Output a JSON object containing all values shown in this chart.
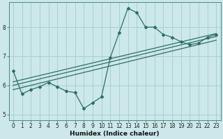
{
  "xlabel": "Humidex (Indice chaleur)",
  "background_color": "#cce8ea",
  "line_color": "#2e6e62",
  "grid_color": "#aacfcf",
  "x_data": [
    0,
    1,
    2,
    3,
    4,
    5,
    6,
    7,
    8,
    9,
    10,
    11,
    12,
    13,
    14,
    15,
    16,
    17,
    18,
    19,
    20,
    21,
    22,
    23
  ],
  "y_data": [
    6.5,
    5.7,
    5.85,
    5.95,
    6.1,
    5.95,
    5.8,
    5.75,
    5.2,
    5.4,
    5.6,
    6.95,
    7.8,
    8.65,
    8.5,
    8.0,
    8.0,
    7.75,
    7.65,
    7.5,
    7.4,
    7.45,
    7.65,
    7.75
  ],
  "reg_line1_x": [
    0,
    23
  ],
  "reg_line1_y": [
    5.85,
    7.55
  ],
  "reg_line2_x": [
    0,
    23
  ],
  "reg_line2_y": [
    6.0,
    7.68
  ],
  "reg_line3_x": [
    0,
    23
  ],
  "reg_line3_y": [
    6.12,
    7.78
  ],
  "xlim": [
    -0.5,
    23.5
  ],
  "ylim": [
    4.8,
    8.85
  ],
  "yticks": [
    5,
    6,
    7,
    8
  ],
  "xticks": [
    0,
    1,
    2,
    3,
    4,
    5,
    6,
    7,
    8,
    9,
    10,
    11,
    12,
    13,
    14,
    15,
    16,
    17,
    18,
    19,
    20,
    21,
    22,
    23
  ],
  "tick_fontsize": 5.5,
  "label_fontsize": 6.5
}
